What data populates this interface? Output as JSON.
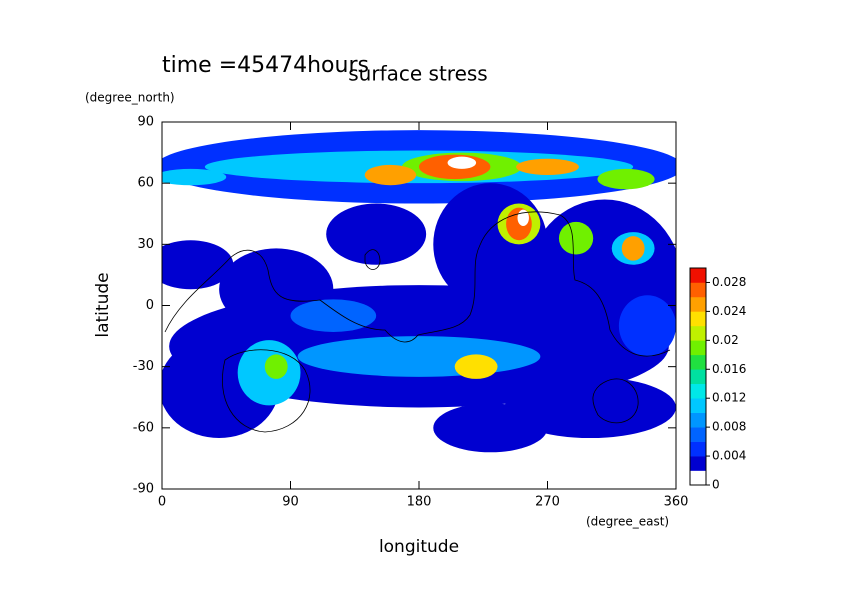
{
  "chart_data": {
    "type": "contour",
    "title": "surface stress",
    "subtitle": "time =45474hours",
    "x_label": "longitude",
    "x_unit": "(degree_east)",
    "y_label": "latitude",
    "y_unit": "(degree_north)",
    "xlim": [
      0,
      360
    ],
    "xticks": [
      0,
      90,
      180,
      270,
      360
    ],
    "ylim": [
      -90,
      90
    ],
    "yticks": [
      -90,
      -60,
      -30,
      0,
      30,
      60,
      90
    ],
    "colorbar": {
      "clim": [
        0,
        0.03
      ],
      "ticks": [
        0,
        0.004,
        0.008,
        0.012,
        0.016,
        0.02,
        0.024,
        0.028
      ],
      "colors": [
        "#ffffff",
        "#0000d0",
        "#0030ff",
        "#0064ff",
        "#0096ff",
        "#00c8ff",
        "#00e8e8",
        "#00e0a0",
        "#20e040",
        "#70f000",
        "#c0f000",
        "#ffe000",
        "#ffa000",
        "#ff6000",
        "#f01000"
      ]
    }
  }
}
